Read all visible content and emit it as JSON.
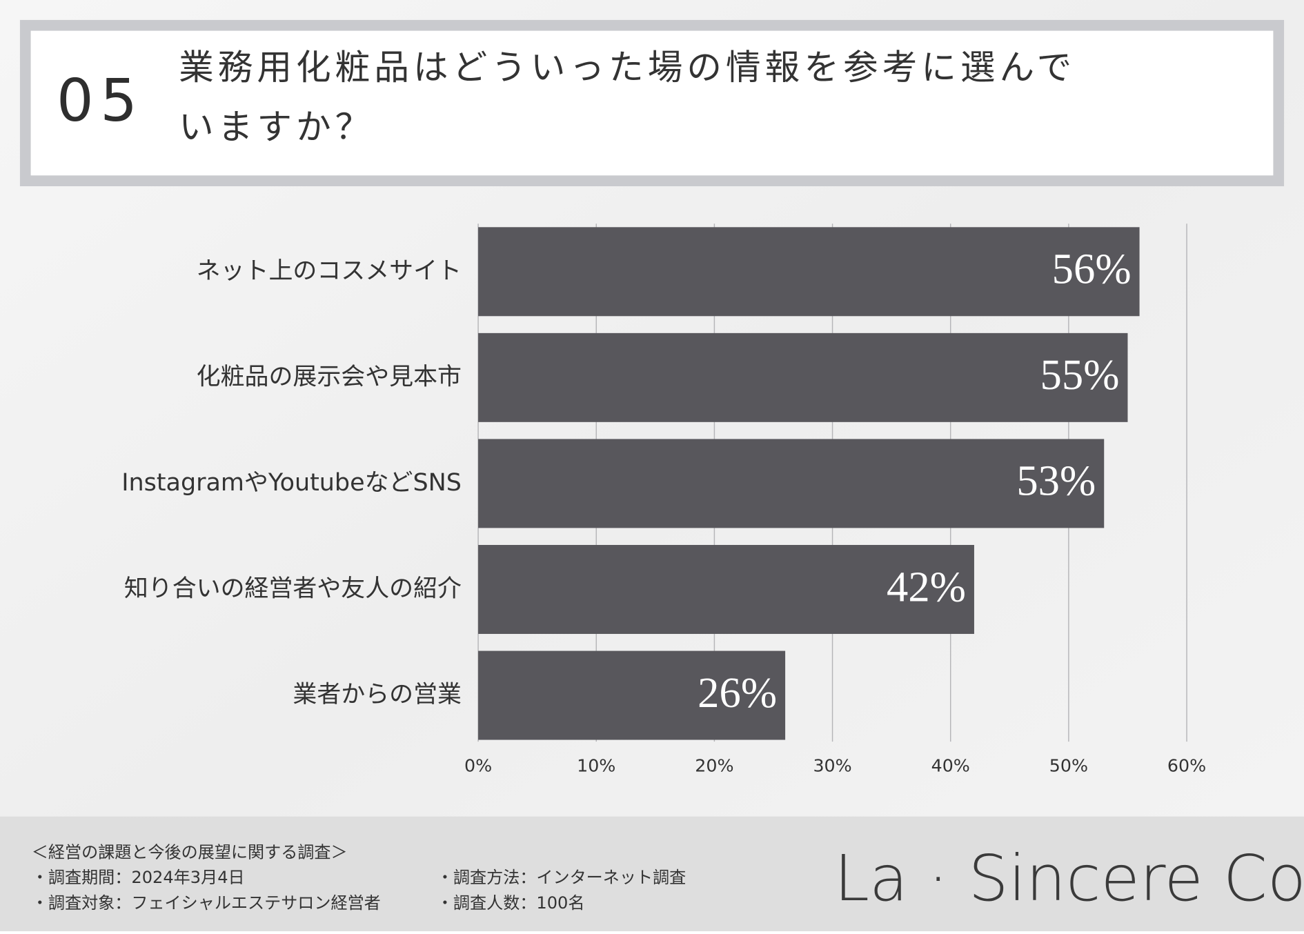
{
  "header": {
    "number": "05",
    "title_lines": [
      "業務用化粧品はどういった場の情報を参考に選んで",
      "いますか？"
    ]
  },
  "chart_data": {
    "type": "bar",
    "orientation": "horizontal",
    "categories": [
      "ネット上のコスメサイト",
      "化粧品の展示会や見本市",
      "InstagramやYoutubeなどSNS",
      "知り合いの経営者や友人の紹介",
      "業者からの営業"
    ],
    "values": [
      56,
      55,
      53,
      42,
      26
    ],
    "value_labels": [
      "56%",
      "55%",
      "53%",
      "42%",
      "26%"
    ],
    "color": "#58575c",
    "xlim": [
      0,
      60
    ],
    "xticks": [
      {
        "value": 0,
        "label": "0%"
      },
      {
        "value": 10,
        "label": "10%"
      },
      {
        "value": 20,
        "label": "20%"
      },
      {
        "value": 30,
        "label": "30%"
      },
      {
        "value": 40,
        "label": "40%"
      },
      {
        "value": 50,
        "label": "50%"
      },
      {
        "value": 60,
        "label": "60%"
      }
    ],
    "grid": true
  },
  "footer": {
    "survey_title": "＜経営の課題と今後の展望に関する調査＞",
    "items": [
      "・調査期間：2024年3月4日",
      "・調査方法：インターネット調査",
      "・調査対象：フェイシャルエステサロン経営者",
      "・調査人数：100名"
    ],
    "logo": "La · Sincere Co."
  }
}
